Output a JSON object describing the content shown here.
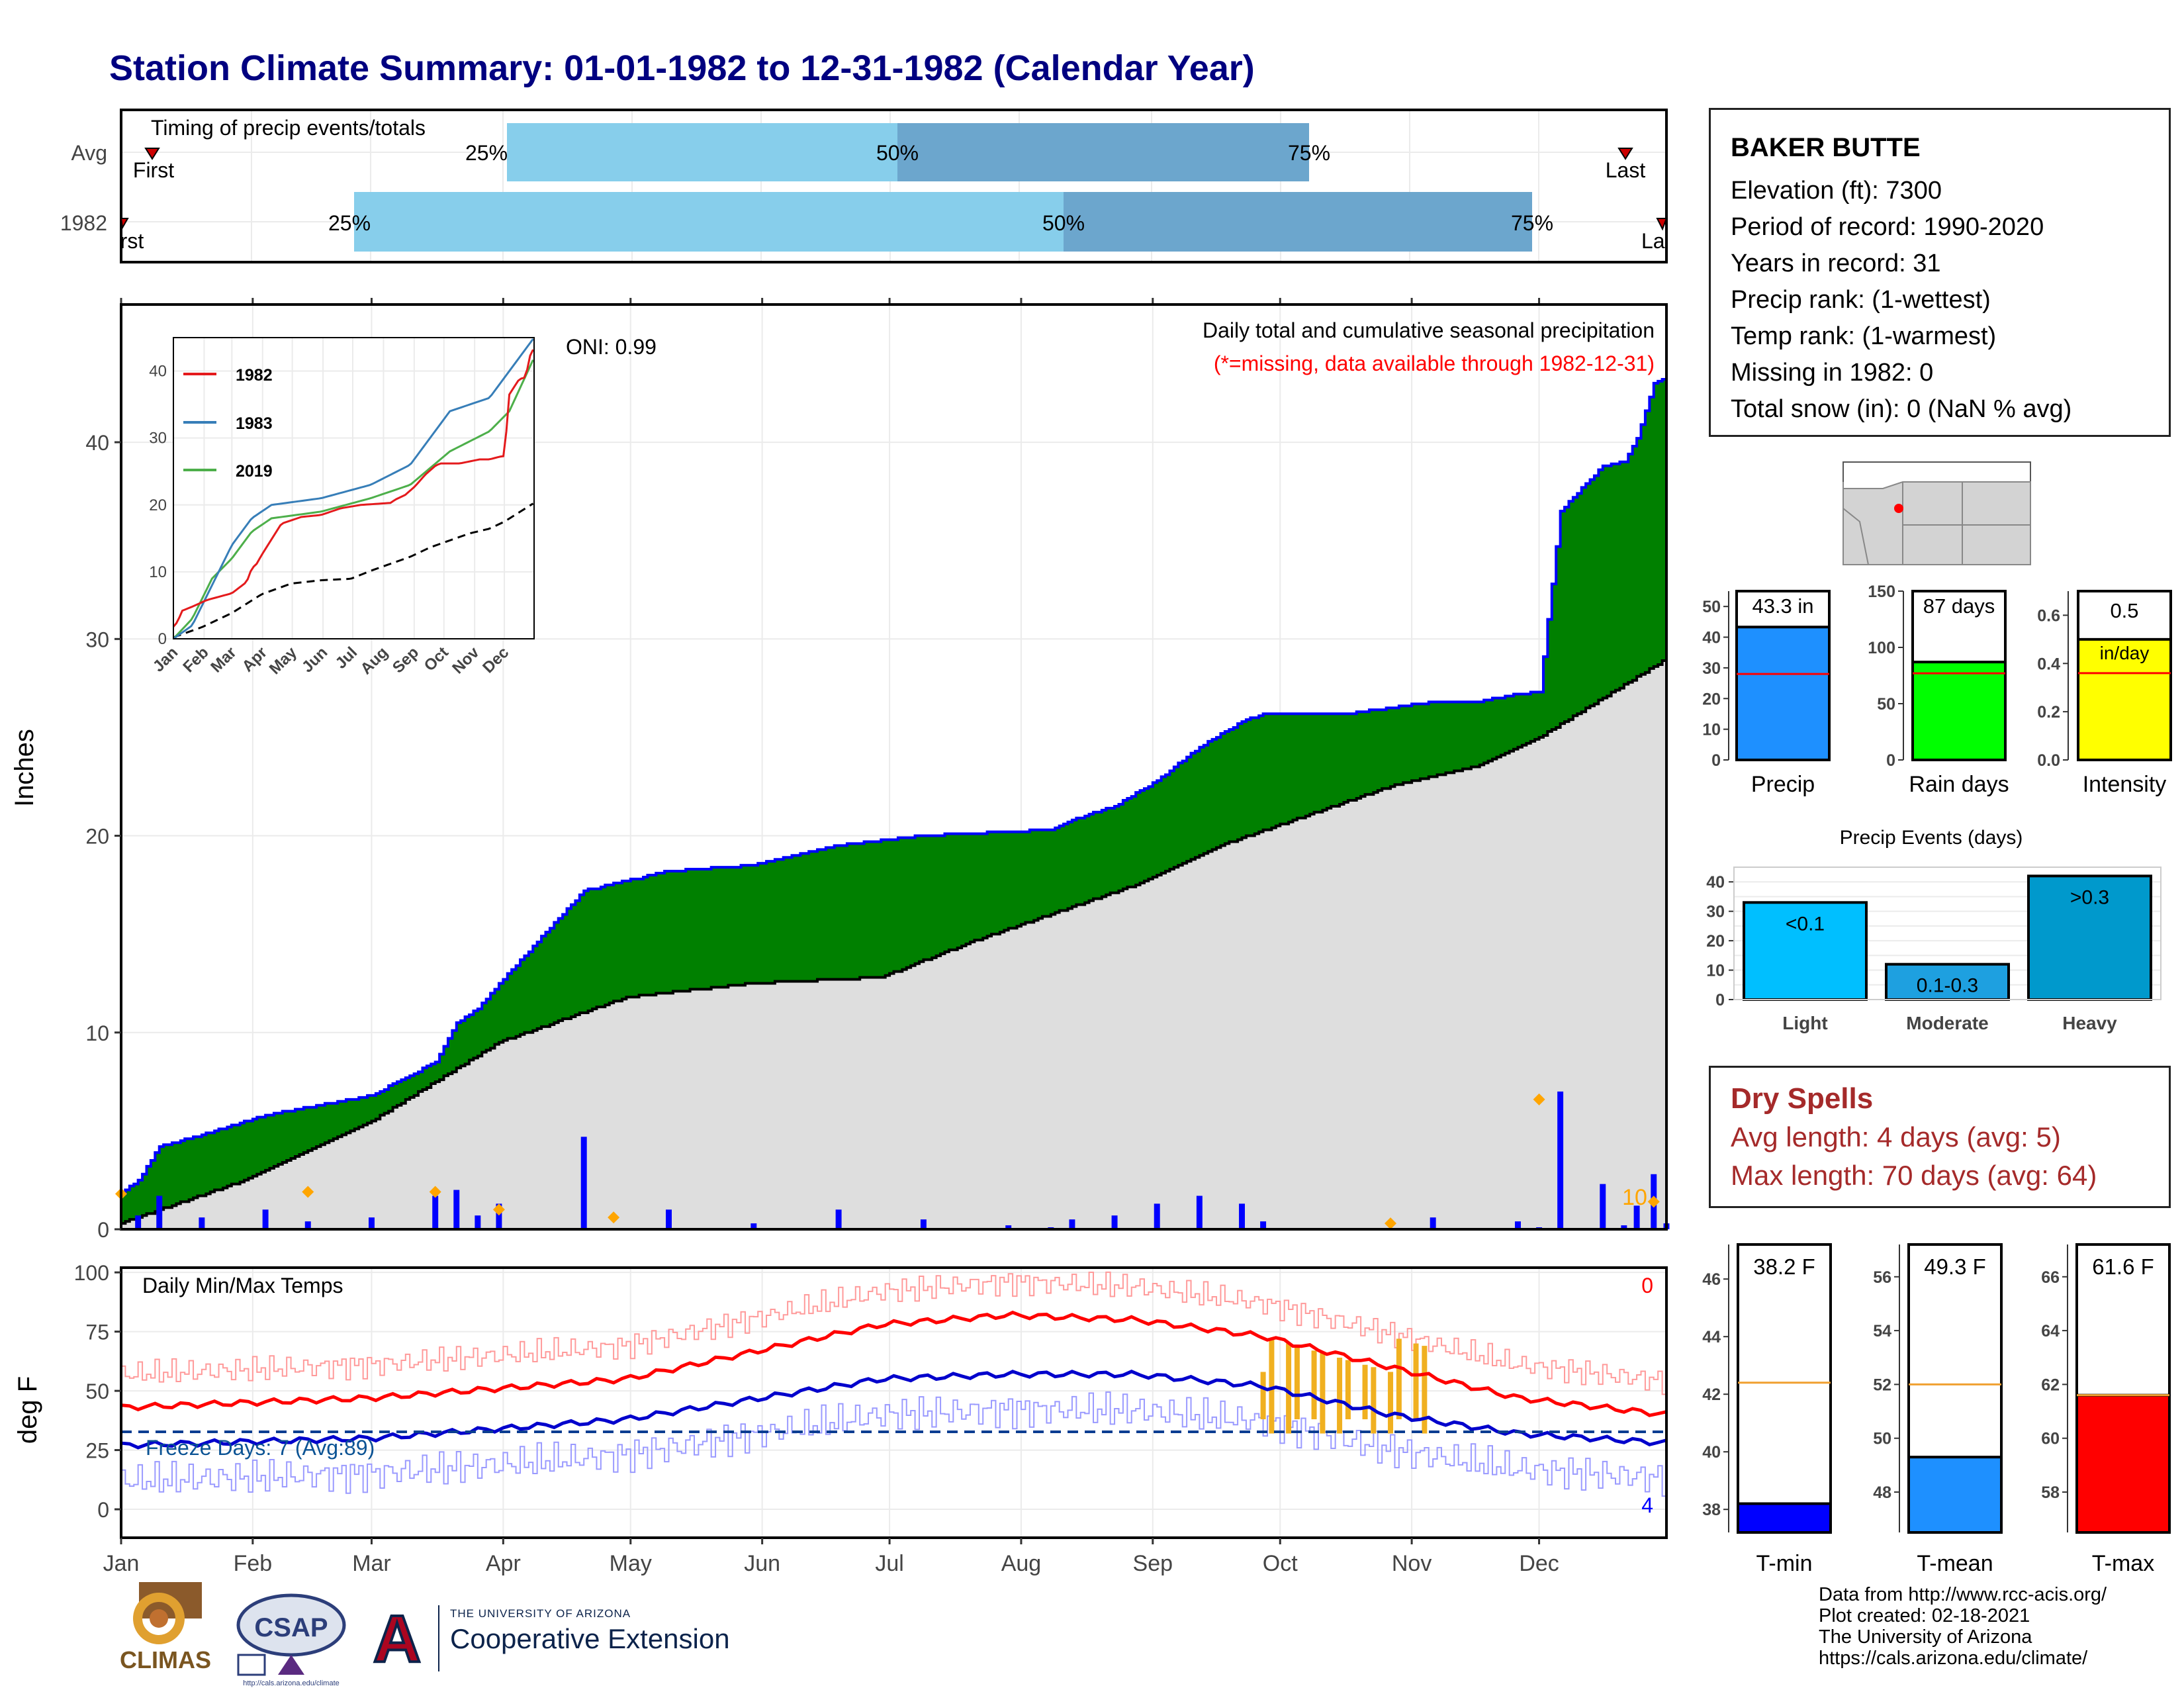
{
  "title": "Station Climate Summary: 01-01-1982 to 12-31-1982 (Calendar Year)",
  "timing_panel": {
    "label": "Timing of precip events/totals",
    "rows": [
      {
        "name": "Avg",
        "pct25": "25%",
        "pct50": "50%",
        "pct75": "75%",
        "first": "First",
        "last": "Last"
      },
      {
        "name": "1982",
        "pct25": "25%",
        "pct50": "50%",
        "pct75": "75%",
        "first": "First",
        "last": "Last"
      }
    ]
  },
  "station": {
    "name": "BAKER BUTTE",
    "elevation": "Elevation (ft): 7300",
    "period": "Period of record: 1990-2020",
    "years": "Years in record: 31",
    "precip_rank": "Precip rank:  (1-wettest)",
    "temp_rank": "Temp rank:  (1-warmest)",
    "missing": "Missing in 1982: 0",
    "snow": "Total snow (in): 0 (NaN % avg)"
  },
  "precip_panel": {
    "ylabel": "Inches",
    "title": "Daily total and cumulative seasonal precipitation",
    "subtitle": "(*=missing, data available through 1982-12-31)",
    "oni": "ONI: 0.99",
    "annotation_10": "10",
    "yticks": [
      "0",
      "10",
      "20",
      "30",
      "40"
    ]
  },
  "temp_panel": {
    "ylabel": "deg F",
    "title": "Daily Min/Max Temps",
    "freeze": "Freeze Days: 7 (Avg:89)",
    "count_top": "0",
    "count_bottom": "4",
    "yticks": [
      "0",
      "25",
      "50",
      "75",
      "100"
    ]
  },
  "months": [
    "Jan",
    "Feb",
    "Mar",
    "Apr",
    "May",
    "Jun",
    "Jul",
    "Aug",
    "Sep",
    "Oct",
    "Nov",
    "Dec"
  ],
  "inset": {
    "legend": [
      "1982",
      "1983",
      "2019"
    ],
    "colors": [
      "#e41a1c",
      "#377eb8",
      "#4daf4a"
    ],
    "yticks": [
      "0",
      "10",
      "20",
      "30",
      "40"
    ],
    "months": [
      "Jan",
      "Feb",
      "Mar",
      "Apr",
      "May",
      "Jun",
      "Jul",
      "Aug",
      "Sep",
      "Oct",
      "Nov",
      "Dec"
    ]
  },
  "bar_stats": {
    "precip": {
      "label": "Precip",
      "value_text": "43.3 in"
    },
    "raindays": {
      "label": "Rain days",
      "value_text": "87 days"
    },
    "intensity": {
      "label": "Intensity",
      "value_text": "0.5",
      "unit": "in/day"
    }
  },
  "events": {
    "title": "Precip Events (days)",
    "categories": [
      "Light",
      "Moderate",
      "Heavy"
    ],
    "labels": [
      "<0.1",
      "0.1-0.3",
      ">0.3"
    ]
  },
  "dry_spells": {
    "title": "Dry Spells",
    "avg": "Avg length: 4 days (avg: 5)",
    "max": "Max length: 70 days (avg: 64)"
  },
  "temp_bars": {
    "tmin": {
      "label": "T-min",
      "value_text": "38.2 F"
    },
    "tmean": {
      "label": "T-mean",
      "value_text": "49.3 F"
    },
    "tmax": {
      "label": "T-max",
      "value_text": "61.6 F"
    }
  },
  "credits": {
    "line1": "Data from http://www.rcc-acis.org/",
    "line2": "Plot created: 02-18-2021",
    "line3": "The University of Arizona",
    "line4": "https://cals.arizona.edu/climate/"
  },
  "logos": {
    "climas": "CLIMAS",
    "csap": "CSAP",
    "csap_url": "http://cals.arizona.edu/climate",
    "ua_line1": "THE UNIVERSITY OF ARIZONA",
    "ua_line2": "Cooperative Extension",
    "ua_letter": "A"
  },
  "chart_data": [
    {
      "type": "area",
      "title": "Daily total and cumulative seasonal precipitation",
      "ylabel": "Inches",
      "ylim": [
        0,
        47
      ],
      "x_unit": "day of year",
      "series": [
        {
          "name": "1982",
          "x": [
            1,
            5,
            10,
            20,
            35,
            45,
            60,
            75,
            80,
            85,
            90,
            110,
            130,
            150,
            170,
            190,
            210,
            220,
            225,
            235,
            245,
            255,
            265,
            270,
            290,
            310,
            320,
            330,
            335,
            340,
            350,
            355,
            358,
            362,
            365
          ],
          "values": [
            1.8,
            2.5,
            4.2,
            4.8,
            5.8,
            6.2,
            6.8,
            8.5,
            10.5,
            11.2,
            12.5,
            17.2,
            18.2,
            18.5,
            19.5,
            20.0,
            20.2,
            20.3,
            20.8,
            21.5,
            22.8,
            24.5,
            25.8,
            26.2,
            26.2,
            26.8,
            26.8,
            27.2,
            27.3,
            36.5,
            38.8,
            39.0,
            40.2,
            43.0,
            43.3
          ]
        },
        {
          "x": [
            1,
            30,
            60,
            90,
            120,
            150,
            180,
            200,
            220,
            240,
            260,
            280,
            300,
            320,
            335,
            350,
            365
          ],
          "values": [
            0.3,
            2.5,
            5.5,
            9.5,
            11.8,
            12.5,
            12.8,
            14.5,
            16.0,
            17.5,
            19.5,
            21.0,
            22.5,
            23.5,
            25.0,
            27.0,
            29.0
          ]
        }
      ]
    },
    {
      "type": "line",
      "title": "Daily Min/Max Temps",
      "ylabel": "deg F",
      "ylim": [
        -10,
        100
      ],
      "series": [
        {
          "x": [
            1,
            60,
            120,
            180,
            210,
            240,
            270,
            300,
            330,
            365
          ],
          "values": [
            43,
            47,
            55,
            78,
            82,
            80,
            73,
            60,
            47,
            40
          ]
        },
        {
          "x": [
            1,
            60,
            120,
            180,
            210,
            240,
            270,
            300,
            330,
            365
          ],
          "values": [
            27,
            30,
            38,
            55,
            57,
            57,
            52,
            40,
            32,
            28
          ]
        }
      ]
    },
    {
      "type": "bar",
      "title": "Precip Events (days)",
      "categories": [
        "Light",
        "Moderate",
        "Heavy"
      ],
      "values": [
        33,
        12,
        42
      ],
      "ylim": [
        0,
        45
      ]
    },
    {
      "type": "bar",
      "categories": [
        "Precip",
        "Rain days",
        "Intensity"
      ],
      "values": [
        43.3,
        87,
        0.5
      ]
    },
    {
      "type": "bar",
      "categories": [
        "T-min",
        "T-mean",
        "T-max"
      ],
      "values": [
        38.2,
        49.3,
        61.6
      ]
    }
  ]
}
